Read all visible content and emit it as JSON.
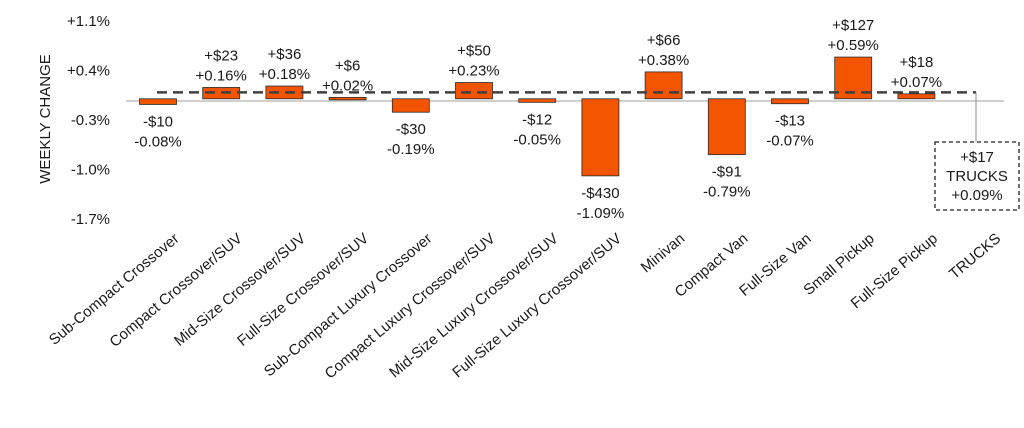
{
  "chart_data": {
    "type": "bar",
    "ylabel": "WEEKLY CHANGE",
    "ylim": [
      -1.7,
      1.1
    ],
    "yticks": [
      "+1.1%",
      "+0.4%",
      "-0.3%",
      "-1.0%",
      "-1.7%"
    ],
    "ytick_values": [
      1.1,
      0.4,
      -0.3,
      -1.0,
      -1.7
    ],
    "categories": [
      "Sub-Compact Crossover",
      "Compact Crossover/SUV",
      "Mid-Size Crossover/SUV",
      "Full-Size Crossover/SUV",
      "Sub-Compact Luxury Crossover",
      "Compact Luxury Crossover/SUV",
      "Mid-Size Luxury Crossover/SUV",
      "Full-Size Luxury Crossover/SUV",
      "Minivan",
      "Compact Van",
      "Full-Size Van",
      "Small Pickup",
      "Full-Size Pickup",
      "TRUCKS"
    ],
    "values": [
      -0.08,
      0.16,
      0.18,
      0.02,
      -0.19,
      0.23,
      -0.05,
      -1.09,
      0.38,
      -0.79,
      -0.07,
      0.59,
      0.07,
      null
    ],
    "dollar_labels": [
      "-$10",
      "+$23",
      "+$36",
      "+$6",
      "-$30",
      "+$50",
      "-$12",
      "-$430",
      "+$66",
      "-$91",
      "-$13",
      "+$127",
      "+$18",
      ""
    ],
    "percent_labels": [
      "-0.08%",
      "+0.16%",
      "+0.18%",
      "+0.02%",
      "-0.19%",
      "+0.23%",
      "-0.05%",
      "-1.09%",
      "+0.38%",
      "-0.79%",
      "-0.07%",
      "+0.59%",
      "+0.07%",
      ""
    ],
    "reference_line": {
      "value": 0.09,
      "style": "dashed",
      "callout": {
        "dollar": "+$17",
        "name": "TRUCKS",
        "percent": "+0.09%"
      }
    },
    "bar_color": "#f25400",
    "bar_edge_color": "#2b2b2b",
    "grid": false,
    "legend": "none"
  }
}
